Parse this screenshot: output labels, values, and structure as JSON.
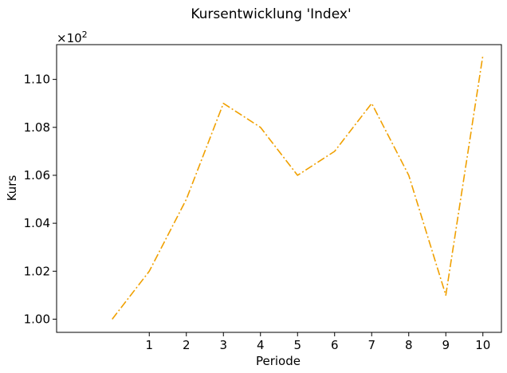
{
  "chart_data": {
    "type": "line",
    "title": "Kursentwicklung 'Index'",
    "xlabel": "Periode",
    "ylabel": "Kurs",
    "y_multiplier": {
      "base": "×10",
      "exponent": "2"
    },
    "x_ticks": [
      "1",
      "2",
      "3",
      "4",
      "5",
      "6",
      "7",
      "8",
      "9",
      "10"
    ],
    "y_ticks": [
      "1.00",
      "1.02",
      "1.04",
      "1.06",
      "1.08",
      "1.10"
    ],
    "xlim": [
      -1.5,
      10.5
    ],
    "ylim": [
      99.45,
      111.45
    ],
    "grid": false,
    "line_style": "dash-dot",
    "color": "#f0a000",
    "series": [
      {
        "x": [
          0,
          1,
          2,
          3,
          4,
          5,
          6,
          7,
          8,
          9,
          10
        ],
        "values": [
          100,
          102,
          105,
          109,
          108,
          106,
          107,
          109,
          106,
          101,
          111
        ]
      }
    ]
  }
}
